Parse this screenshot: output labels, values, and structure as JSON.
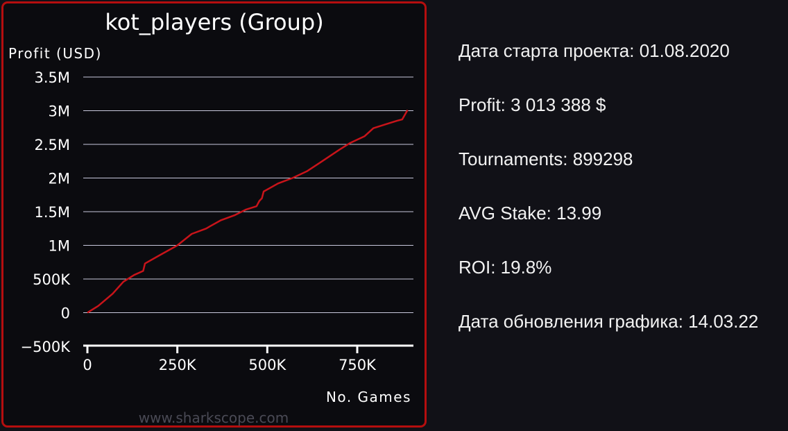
{
  "chart_data": {
    "type": "line",
    "title": "kot_players (Group)",
    "ylabel": "Profit (USD)",
    "xlabel": "No. Games",
    "ylim": [
      -500000,
      3500000
    ],
    "xlim": [
      0,
      900000
    ],
    "yticks": [
      {
        "value": 3500000,
        "label": "3.5M"
      },
      {
        "value": 3000000,
        "label": "3M"
      },
      {
        "value": 2500000,
        "label": "2.5M"
      },
      {
        "value": 2000000,
        "label": "2M"
      },
      {
        "value": 1500000,
        "label": "1.5M"
      },
      {
        "value": 1000000,
        "label": "1M"
      },
      {
        "value": 500000,
        "label": "500K"
      },
      {
        "value": 0,
        "label": "0"
      },
      {
        "value": -500000,
        "label": "−500K"
      }
    ],
    "xticks": [
      {
        "value": 0,
        "label": "0"
      },
      {
        "value": 250000,
        "label": "250K"
      },
      {
        "value": 500000,
        "label": "500K"
      },
      {
        "value": 750000,
        "label": "750K"
      }
    ],
    "grid": true,
    "series": [
      {
        "color": "#c8141a",
        "x": [
          0,
          30000,
          70000,
          100000,
          130000,
          155000,
          160000,
          200000,
          250000,
          290000,
          330000,
          340000,
          370000,
          410000,
          440000,
          470000,
          478000,
          485000,
          490000,
          530000,
          570000,
          610000,
          650000,
          700000,
          730000,
          770000,
          795000,
          830000,
          860000,
          875000,
          890000
        ],
        "values": [
          0,
          100000,
          280000,
          460000,
          560000,
          620000,
          730000,
          850000,
          1000000,
          1170000,
          1250000,
          1280000,
          1370000,
          1450000,
          1530000,
          1580000,
          1660000,
          1700000,
          1800000,
          1920000,
          2000000,
          2100000,
          2240000,
          2420000,
          2520000,
          2620000,
          2740000,
          2800000,
          2850000,
          2870000,
          3010000
        ]
      }
    ],
    "watermark": "www.sharkscope.com"
  },
  "stats": {
    "start_date": "Дата старта проекта: 01.08.2020",
    "profit": "Profit: 3 013 388 $",
    "tournaments": "Tournaments: 899298",
    "avg_stake": "AVG Stake: 13.99",
    "roi": "ROI: 19.8%",
    "update_date": "Дата обновления графика: 14.03.22"
  },
  "colors": {
    "panel_border": "#b50e0e",
    "line": "#c8141a",
    "background": "#111117"
  }
}
